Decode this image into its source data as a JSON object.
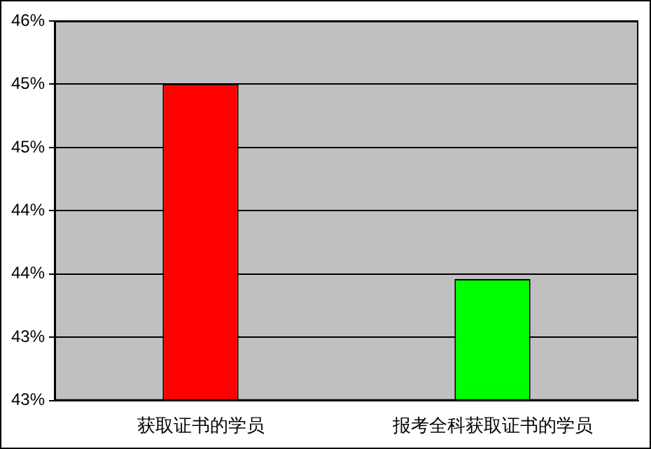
{
  "chart_data": {
    "type": "bar",
    "categories": [
      "获取证书的学员",
      "报考全科获取证书的学员"
    ],
    "values": [
      45.0,
      43.46
    ],
    "colors": [
      "#ff0000",
      "#00ff00"
    ],
    "ylim": [
      42.5,
      45.5
    ],
    "yticks": [
      {
        "value": 42.5,
        "label": "43%"
      },
      {
        "value": 43,
        "label": "43%"
      },
      {
        "value": 43.5,
        "label": "44%"
      },
      {
        "value": 44,
        "label": "44%"
      },
      {
        "value": 44.5,
        "label": "45%"
      },
      {
        "value": 45,
        "label": "45%"
      },
      {
        "value": 45.5,
        "label": "46%"
      }
    ],
    "grid": "y",
    "legend": false
  }
}
